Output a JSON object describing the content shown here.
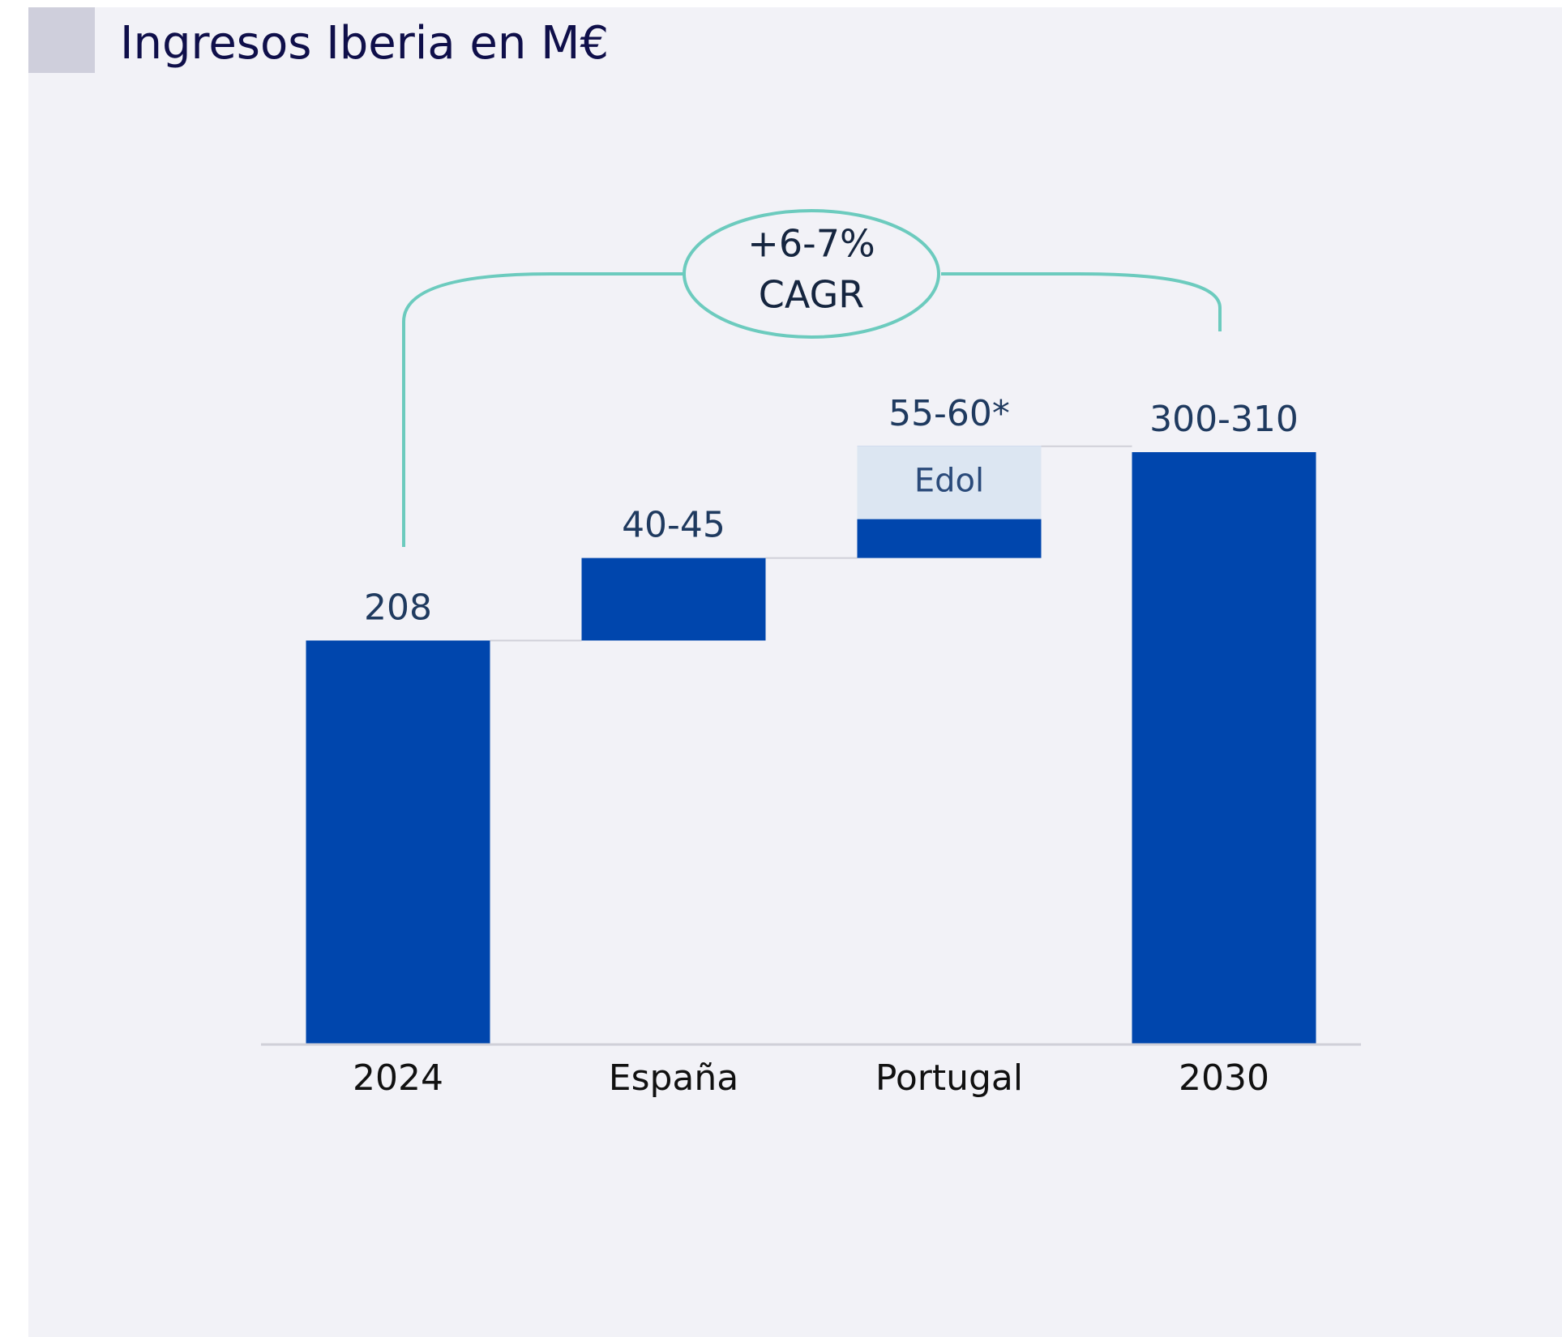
{
  "chart_data": {
    "type": "waterfall",
    "title": "Ingresos Iberia en M€",
    "categories": [
      "2024",
      "España",
      "Portugal",
      "2030"
    ],
    "values": [
      208,
      42.5,
      57.5,
      305
    ],
    "value_labels": [
      "208",
      "40-45",
      "55-60*",
      "300-310"
    ],
    "color": "#0046ad",
    "segment": {
      "name": "Edol",
      "category": 2,
      "value": 37.5,
      "color": "#dce6f2"
    },
    "annotation": [
      "+6-7%",
      "CAGR"
    ],
    "annotation_color": "#6ccbbe"
  }
}
